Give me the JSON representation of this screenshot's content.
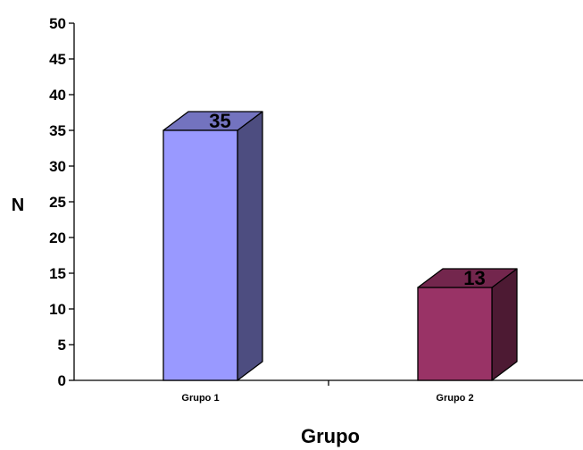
{
  "chart_data": {
    "type": "bar",
    "categories": [
      "Grupo 1",
      "Grupo 2"
    ],
    "values": [
      35,
      13
    ],
    "data_labels": [
      "35",
      "13"
    ],
    "xlabel": "Grupo",
    "ylabel": "N",
    "ylim": [
      0,
      50
    ],
    "yticks": [
      "0",
      "5",
      "10",
      "15",
      "20",
      "25",
      "30",
      "35",
      "40",
      "45",
      "50"
    ],
    "grid": false,
    "legend": "none",
    "style": "3d-column",
    "colors": {
      "bars": [
        {
          "front": "#9999FF",
          "top": "#7373BF",
          "side": "#4D4D80"
        },
        {
          "front": "#993366",
          "top": "#73264D",
          "side": "#4D1A33"
        }
      ],
      "axis": "#000000"
    }
  }
}
